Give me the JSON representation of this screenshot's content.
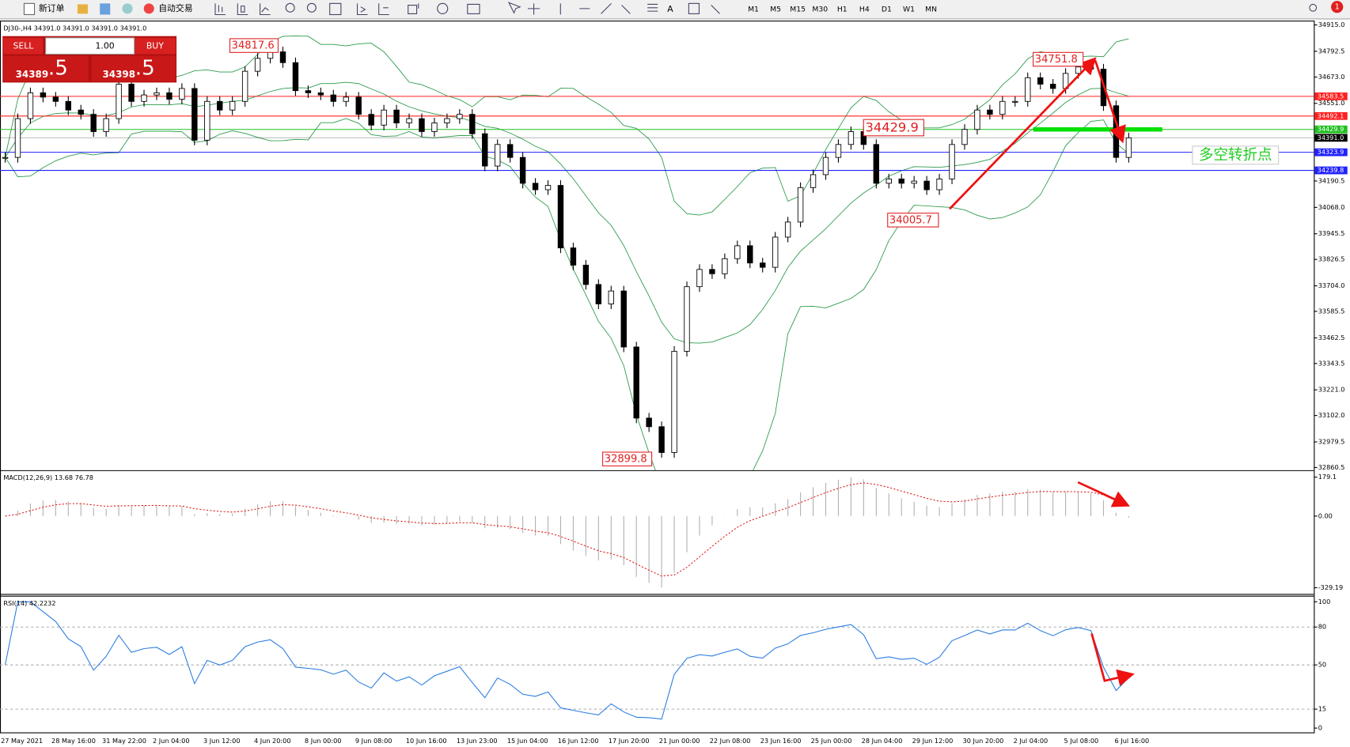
{
  "toolbar": {
    "buttons": [
      "新订单",
      "自动交易"
    ],
    "timeframes": [
      "M1",
      "M5",
      "M15",
      "M30",
      "H1",
      "H4",
      "D1",
      "W1",
      "MN"
    ],
    "notifications": "1"
  },
  "chart_info": "DJ30-,H4  34391.0 34391.0 34391.0 34391.0",
  "trade_panel": {
    "sell": "SELL",
    "buy": "BUY",
    "lot": "1.00",
    "sell_price": "34389",
    "sell_price_big": ".5",
    "buy_price": "34398",
    "buy_price_big": ".5"
  },
  "chart_data": {
    "type": "candlestick",
    "closes": [
      34300,
      34480,
      34600,
      34580,
      34560,
      34520,
      34500,
      34420,
      34480,
      34640,
      34560,
      34590,
      34600,
      34570,
      34620,
      34380,
      34560,
      34520,
      34560,
      34700,
      34760,
      34790,
      34740,
      34610,
      34600,
      34590,
      34560,
      34580,
      34500,
      34450,
      34520,
      34460,
      34480,
      34420,
      34460,
      34480,
      34500,
      34410,
      34260,
      34360,
      34300,
      34180,
      34150,
      34170,
      33880,
      33800,
      33710,
      33620,
      33680,
      33420,
      33090,
      33050,
      32930,
      33400,
      33700,
      33780,
      33760,
      33830,
      33890,
      33810,
      33790,
      33930,
      34000,
      34160,
      34220,
      34300,
      34360,
      34420,
      34360,
      34180,
      34200,
      34180,
      34190,
      34150,
      34200,
      34360,
      34430,
      34520,
      34500,
      34560,
      34560,
      34670,
      34640,
      34620,
      34690,
      34720,
      34710,
      34540,
      34300,
      34391
    ],
    "x_labels": [
      "27 May 2021",
      "28 May 16:00",
      "31 May 22:00",
      "2 Jun 04:00",
      "3 Jun 12:00",
      "4 Jun 20:00",
      "8 Jun 00:00",
      "9 Jun 08:00",
      "10 Jun 16:00",
      "13 Jun 23:00",
      "15 Jun 04:00",
      "16 Jun 12:00",
      "17 Jun 20:00",
      "21 Jun 00:00",
      "22 Jun 08:00",
      "23 Jun 16:00",
      "25 Jun 00:00",
      "28 Jun 04:00",
      "29 Jun 12:00",
      "30 Jun 20:00",
      "2 Jul 04:00",
      "5 Jul 08:00",
      "6 Jul 16:00"
    ],
    "ylim": [
      32848,
      34931
    ],
    "yticks": [
      {
        "value": 34915,
        "label": "34915.0"
      },
      34792.5,
      {
        "value": 34673,
        "label": "34673.0"
      },
      {
        "value": 34551,
        "label": "34551.0"
      },
      34190.5,
      {
        "value": 34068,
        "label": "34068.0"
      },
      33945.5,
      33826.5,
      {
        "value": 33704,
        "label": "33704.0"
      },
      33585.5,
      33462.5,
      33343.5,
      {
        "value": 33221,
        "label": "33221.0"
      },
      {
        "value": 33102,
        "label": "33102.0"
      },
      32979.5,
      32860.5
    ],
    "price_lines": [
      {
        "value": 34583.5,
        "color": "#ff2020"
      },
      {
        "value": 34492.1,
        "color": "#ff2020"
      },
      {
        "value": 34429.9,
        "color": "#20c020"
      },
      {
        "value": 34391,
        "label": "34391.0",
        "color": "#000000"
      },
      {
        "value": 34323.9,
        "color": "#2020ff"
      },
      {
        "value": 34239.8,
        "color": "#2020ff"
      }
    ],
    "annotations": [
      34817.6,
      34751.8,
      34429.9,
      34005.7,
      32899.8
    ],
    "note": "多空转折点",
    "macd": {
      "label": "MACD(12,26,9) 13.68 76.78",
      "ylim": [
        -358,
        207
      ],
      "yticks": [
        179.1,
        {
          "value": 0,
          "label": "0.00"
        },
        -329.19
      ]
    },
    "rsi": {
      "label": "RSI(14) 42.2232",
      "ylim": [
        -3.4,
        104.8
      ],
      "yticks": [
        100,
        80,
        50,
        15,
        0
      ]
    }
  }
}
